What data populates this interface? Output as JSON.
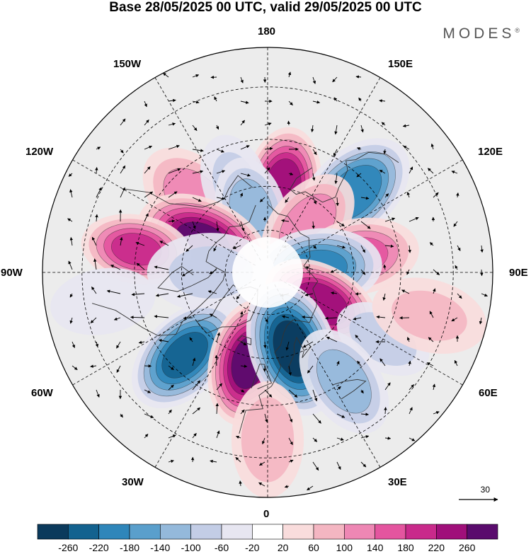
{
  "title": "Base 28/05/2025 00 UTC, valid 29/05/2025 00 UTC",
  "brand": "MODES",
  "brand_mark": "®",
  "longitude_labels": {
    "lon_180": "180",
    "lon_150e": "150E",
    "lon_120e": "120E",
    "lon_90e": "90E",
    "lon_60e": "60E",
    "lon_30e": "30E",
    "lon_0": "0",
    "lon_30w": "30W",
    "lon_60w": "60W",
    "lon_90w": "90W",
    "lon_120w": "120W",
    "lon_150w": "150W"
  },
  "reference_vector": {
    "label": "30"
  },
  "colorbar": {
    "colors": [
      "#0b3a5c",
      "#13628f",
      "#2f86ba",
      "#5a9fcc",
      "#94b9db",
      "#c3cde6",
      "#e7e6f1",
      "#ffffff",
      "#f9dcdc",
      "#f4b6c2",
      "#ee87b4",
      "#e4559f",
      "#c92a8b",
      "#a00f7a",
      "#5a0b6d"
    ],
    "labels": [
      "-260",
      "-220",
      "-180",
      "-140",
      "-100",
      "-60",
      "-20",
      "20",
      "60",
      "100",
      "140",
      "180",
      "220",
      "260"
    ]
  },
  "anomaly_centers": [
    {
      "lon": 170,
      "lat": 60,
      "value": 240,
      "spread": 0.55
    },
    {
      "lon": -135,
      "lat": 55,
      "value": 120,
      "spread": 0.6
    },
    {
      "lon": -160,
      "lat": 58,
      "value": -60,
      "spread": 0.4
    },
    {
      "lon": 133,
      "lat": 50,
      "value": -200,
      "spread": 0.65
    },
    {
      "lon": -165,
      "lat": 68,
      "value": -120,
      "spread": 0.45
    },
    {
      "lon": -115,
      "lat": 65,
      "value": 260,
      "spread": 0.7
    },
    {
      "lon": 140,
      "lat": 68,
      "value": 120,
      "spread": 0.5
    },
    {
      "lon": 100,
      "lat": 58,
      "value": 140,
      "spread": 0.55
    },
    {
      "lon": 95,
      "lat": 72,
      "value": -180,
      "spread": 0.6
    },
    {
      "lon": -100,
      "lat": 45,
      "value": 180,
      "spread": 0.45
    },
    {
      "lon": -90,
      "lat": 70,
      "value": -60,
      "spread": 0.6
    },
    {
      "lon": 60,
      "lat": 68,
      "value": 240,
      "spread": 0.55
    },
    {
      "lon": 60,
      "lat": 45,
      "value": -80,
      "spread": 0.35
    },
    {
      "lon": -45,
      "lat": 50,
      "value": -220,
      "spread": 0.6
    },
    {
      "lon": -12,
      "lat": 58,
      "value": 260,
      "spread": 0.6
    },
    {
      "lon": 18,
      "lat": 62,
      "value": -260,
      "spread": 0.7
    },
    {
      "lon": 35,
      "lat": 45,
      "value": -120,
      "spread": 0.5
    },
    {
      "lon": 0,
      "lat": 35,
      "value": 80,
      "spread": 0.5
    },
    {
      "lon": -80,
      "lat": 35,
      "value": -40,
      "spread": 0.4
    },
    {
      "lon": 75,
      "lat": 35,
      "value": 60,
      "spread": 0.5
    }
  ]
}
